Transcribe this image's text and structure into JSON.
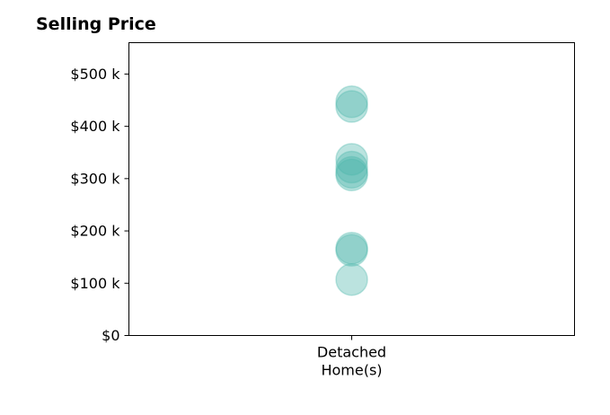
{
  "chart_data": {
    "type": "scatter",
    "title": "Selling Price",
    "categories": [
      [
        "Detached",
        "Home(s)"
      ]
    ],
    "series": [
      {
        "category_index": 0,
        "values": [
          107000,
          163000,
          167000,
          307000,
          312000,
          322000,
          337000,
          438000,
          447000
        ]
      }
    ],
    "ylim": [
      0,
      560000
    ],
    "yticks": [
      {
        "value": 0,
        "label": "$0"
      },
      {
        "value": 100000,
        "label": "$100 k"
      },
      {
        "value": 200000,
        "label": "$200 k"
      },
      {
        "value": 300000,
        "label": "$300 k"
      },
      {
        "value": 400000,
        "label": "$400 k"
      },
      {
        "value": 500000,
        "label": "$500 k"
      }
    ],
    "grid": false,
    "legend": "none",
    "marker_color": "#4db6ac",
    "marker_opacity": 0.38,
    "marker_edge_color": "#4db6ac"
  }
}
